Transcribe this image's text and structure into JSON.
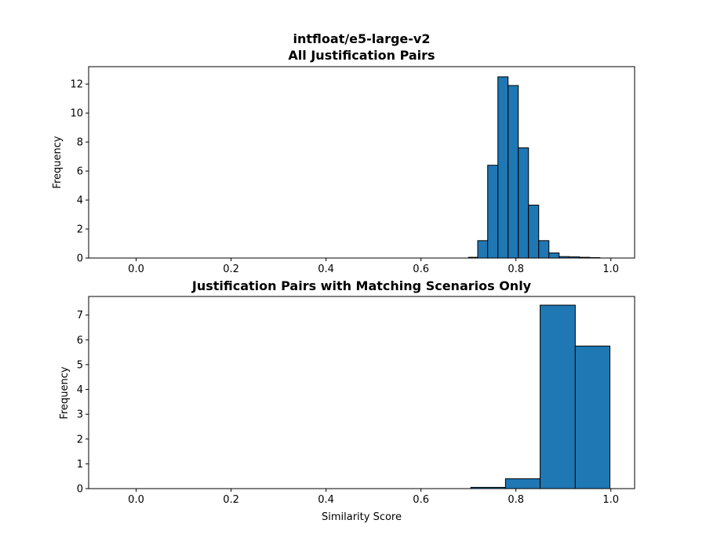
{
  "chart_data": [
    {
      "type": "bar",
      "title_line1": "intfloat/e5-large-v2",
      "title_line2": "All Justification Pairs",
      "xlabel": "",
      "ylabel": "Frequency",
      "xlim": [
        -0.1,
        1.05
      ],
      "ylim": [
        0,
        13.2
      ],
      "xticks": [
        0.0,
        0.2,
        0.4,
        0.6,
        0.8,
        1.0
      ],
      "xtick_labels": [
        "0.0",
        "0.2",
        "0.4",
        "0.6",
        "0.8",
        "1.0"
      ],
      "yticks": [
        0,
        2,
        4,
        6,
        8,
        10,
        12
      ],
      "ytick_labels": [
        "0",
        "2",
        "4",
        "6",
        "8",
        "10",
        "12"
      ],
      "bar_color": "#1f77b4",
      "edge_color": "#000000",
      "bins": [
        {
          "x0": -0.1,
          "x1": 0.7,
          "value": 0
        },
        {
          "x0": 0.7,
          "x1": 0.7195,
          "value": 0.05
        },
        {
          "x0": 0.7195,
          "x1": 0.7405,
          "value": 1.2
        },
        {
          "x0": 0.7405,
          "x1": 0.762,
          "value": 6.4
        },
        {
          "x0": 0.762,
          "x1": 0.7835,
          "value": 12.5
        },
        {
          "x0": 0.7835,
          "x1": 0.805,
          "value": 11.9
        },
        {
          "x0": 0.805,
          "x1": 0.8265,
          "value": 7.6
        },
        {
          "x0": 0.8265,
          "x1": 0.848,
          "value": 3.65
        },
        {
          "x0": 0.848,
          "x1": 0.8695,
          "value": 1.2
        },
        {
          "x0": 0.8695,
          "x1": 0.891,
          "value": 0.35
        },
        {
          "x0": 0.891,
          "x1": 0.9125,
          "value": 0.1
        },
        {
          "x0": 0.9125,
          "x1": 0.934,
          "value": 0.08
        },
        {
          "x0": 0.934,
          "x1": 0.9555,
          "value": 0.05
        },
        {
          "x0": 0.9555,
          "x1": 0.977,
          "value": 0.03
        }
      ]
    },
    {
      "type": "bar",
      "title": "Justification Pairs with Matching Scenarios Only",
      "xlabel": "Similarity Score",
      "ylabel": "Frequency",
      "xlim": [
        -0.1,
        1.05
      ],
      "ylim": [
        0,
        7.75
      ],
      "xticks": [
        0.0,
        0.2,
        0.4,
        0.6,
        0.8,
        1.0
      ],
      "xtick_labels": [
        "0.0",
        "0.2",
        "0.4",
        "0.6",
        "0.8",
        "1.0"
      ],
      "yticks": [
        0,
        1,
        2,
        3,
        4,
        5,
        6,
        7
      ],
      "ytick_labels": [
        "0",
        "1",
        "2",
        "3",
        "4",
        "5",
        "6",
        "7"
      ],
      "bar_color": "#1f77b4",
      "edge_color": "#000000",
      "bins": [
        {
          "x0": -0.1,
          "x1": 0.705,
          "value": 0
        },
        {
          "x0": 0.705,
          "x1": 0.778,
          "value": 0.05
        },
        {
          "x0": 0.778,
          "x1": 0.851,
          "value": 0.4
        },
        {
          "x0": 0.851,
          "x1": 0.925,
          "value": 7.4
        },
        {
          "x0": 0.925,
          "x1": 0.998,
          "value": 5.75
        }
      ]
    }
  ]
}
